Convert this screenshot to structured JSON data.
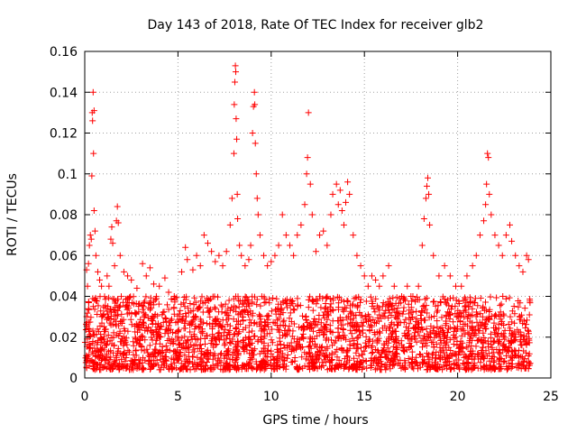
{
  "chart_data": {
    "type": "scatter",
    "title": "Day 143 of 2018, Rate Of TEC Index for receiver glb2",
    "xlabel": "GPS time / hours",
    "ylabel": "ROTI / TECUs",
    "xlim": [
      0,
      25
    ],
    "ylim": [
      0,
      0.16
    ],
    "xticks": [
      0,
      5,
      10,
      15,
      20,
      25
    ],
    "yticks": [
      0,
      0.02,
      0.04,
      0.06,
      0.08,
      0.1,
      0.12,
      0.14,
      0.16
    ],
    "xtick_labels": [
      "0",
      "5",
      "10",
      "15",
      "20",
      "25"
    ],
    "ytick_labels": [
      "0",
      "0.02",
      "0.04",
      "0.06",
      "0.08",
      "0.1",
      "0.12",
      "0.14",
      "0.16"
    ],
    "grid": true,
    "marker": "+",
    "color": "#ff0000",
    "series": [
      {
        "name": "ROTI",
        "points": [
          [
            0.1,
            0.053
          ],
          [
            0.15,
            0.045
          ],
          [
            0.2,
            0.056
          ],
          [
            0.25,
            0.065
          ],
          [
            0.3,
            0.07
          ],
          [
            0.35,
            0.068
          ],
          [
            0.4,
            0.13
          ],
          [
            0.42,
            0.126
          ],
          [
            0.45,
            0.14
          ],
          [
            0.5,
            0.131
          ],
          [
            0.47,
            0.11
          ],
          [
            0.38,
            0.099
          ],
          [
            0.5,
            0.082
          ],
          [
            0.55,
            0.072
          ],
          [
            0.6,
            0.06
          ],
          [
            0.7,
            0.052
          ],
          [
            0.8,
            0.048
          ],
          [
            0.9,
            0.045
          ],
          [
            1.2,
            0.05
          ],
          [
            1.3,
            0.045
          ],
          [
            1.4,
            0.068
          ],
          [
            1.45,
            0.074
          ],
          [
            1.5,
            0.066
          ],
          [
            1.6,
            0.055
          ],
          [
            1.7,
            0.077
          ],
          [
            1.75,
            0.084
          ],
          [
            1.8,
            0.076
          ],
          [
            1.9,
            0.06
          ],
          [
            2.1,
            0.052
          ],
          [
            2.3,
            0.05
          ],
          [
            2.5,
            0.048
          ],
          [
            2.8,
            0.044
          ],
          [
            3.1,
            0.056
          ],
          [
            3.3,
            0.05
          ],
          [
            3.5,
            0.054
          ],
          [
            3.7,
            0.046
          ],
          [
            4.0,
            0.045
          ],
          [
            4.3,
            0.049
          ],
          [
            4.5,
            0.042
          ],
          [
            4.8,
            0.04
          ],
          [
            5.2,
            0.052
          ],
          [
            5.4,
            0.064
          ],
          [
            5.5,
            0.058
          ],
          [
            5.8,
            0.053
          ],
          [
            6.0,
            0.06
          ],
          [
            6.2,
            0.055
          ],
          [
            6.4,
            0.07
          ],
          [
            6.6,
            0.066
          ],
          [
            6.8,
            0.062
          ],
          [
            7.0,
            0.057
          ],
          [
            7.2,
            0.06
          ],
          [
            7.4,
            0.055
          ],
          [
            7.6,
            0.062
          ],
          [
            7.8,
            0.075
          ],
          [
            7.9,
            0.088
          ],
          [
            8.0,
            0.11
          ],
          [
            8.02,
            0.134
          ],
          [
            8.05,
            0.145
          ],
          [
            8.08,
            0.153
          ],
          [
            8.1,
            0.15
          ],
          [
            8.12,
            0.127
          ],
          [
            8.15,
            0.117
          ],
          [
            8.18,
            0.09
          ],
          [
            8.2,
            0.078
          ],
          [
            8.3,
            0.065
          ],
          [
            8.4,
            0.06
          ],
          [
            8.6,
            0.055
          ],
          [
            8.8,
            0.058
          ],
          [
            8.9,
            0.065
          ],
          [
            9.0,
            0.12
          ],
          [
            9.05,
            0.133
          ],
          [
            9.1,
            0.14
          ],
          [
            9.12,
            0.134
          ],
          [
            9.15,
            0.115
          ],
          [
            9.2,
            0.1
          ],
          [
            9.25,
            0.088
          ],
          [
            9.3,
            0.08
          ],
          [
            9.4,
            0.07
          ],
          [
            9.6,
            0.06
          ],
          [
            9.8,
            0.055
          ],
          [
            10.0,
            0.057
          ],
          [
            10.2,
            0.06
          ],
          [
            10.4,
            0.065
          ],
          [
            10.6,
            0.08
          ],
          [
            10.8,
            0.07
          ],
          [
            11.0,
            0.065
          ],
          [
            11.2,
            0.06
          ],
          [
            11.4,
            0.07
          ],
          [
            11.6,
            0.075
          ],
          [
            11.8,
            0.085
          ],
          [
            11.9,
            0.1
          ],
          [
            11.95,
            0.108
          ],
          [
            12.0,
            0.13
          ],
          [
            12.1,
            0.095
          ],
          [
            12.2,
            0.08
          ],
          [
            12.4,
            0.062
          ],
          [
            12.6,
            0.07
          ],
          [
            12.8,
            0.072
          ],
          [
            13.0,
            0.065
          ],
          [
            13.2,
            0.08
          ],
          [
            13.3,
            0.09
          ],
          [
            13.5,
            0.095
          ],
          [
            13.6,
            0.085
          ],
          [
            13.7,
            0.092
          ],
          [
            13.8,
            0.082
          ],
          [
            13.9,
            0.075
          ],
          [
            14.0,
            0.086
          ],
          [
            14.1,
            0.096
          ],
          [
            14.2,
            0.09
          ],
          [
            14.4,
            0.07
          ],
          [
            14.6,
            0.06
          ],
          [
            14.8,
            0.055
          ],
          [
            15.0,
            0.05
          ],
          [
            15.2,
            0.045
          ],
          [
            15.4,
            0.05
          ],
          [
            15.6,
            0.048
          ],
          [
            15.8,
            0.045
          ],
          [
            16.0,
            0.05
          ],
          [
            16.3,
            0.055
          ],
          [
            16.6,
            0.045
          ],
          [
            17.0,
            0.04
          ],
          [
            17.3,
            0.045
          ],
          [
            17.6,
            0.04
          ],
          [
            17.9,
            0.045
          ],
          [
            18.1,
            0.065
          ],
          [
            18.2,
            0.078
          ],
          [
            18.3,
            0.088
          ],
          [
            18.35,
            0.094
          ],
          [
            18.4,
            0.098
          ],
          [
            18.45,
            0.09
          ],
          [
            18.5,
            0.075
          ],
          [
            18.7,
            0.06
          ],
          [
            19.0,
            0.05
          ],
          [
            19.3,
            0.055
          ],
          [
            19.6,
            0.05
          ],
          [
            19.9,
            0.045
          ],
          [
            20.2,
            0.045
          ],
          [
            20.5,
            0.05
          ],
          [
            20.8,
            0.055
          ],
          [
            21.0,
            0.06
          ],
          [
            21.2,
            0.07
          ],
          [
            21.4,
            0.077
          ],
          [
            21.5,
            0.085
          ],
          [
            21.55,
            0.095
          ],
          [
            21.6,
            0.11
          ],
          [
            21.65,
            0.108
          ],
          [
            21.7,
            0.09
          ],
          [
            21.8,
            0.08
          ],
          [
            22.0,
            0.07
          ],
          [
            22.2,
            0.065
          ],
          [
            22.4,
            0.06
          ],
          [
            22.6,
            0.07
          ],
          [
            22.8,
            0.075
          ],
          [
            22.9,
            0.067
          ],
          [
            23.1,
            0.06
          ],
          [
            23.3,
            0.055
          ],
          [
            23.5,
            0.052
          ],
          [
            23.7,
            0.06
          ],
          [
            23.8,
            0.058
          ]
        ]
      }
    ],
    "background_band": {
      "description": "dense ROTI scatter cluster filling 0.005 to 0.04 across the full 0 to 24 hour span",
      "x_range": [
        0,
        23.9
      ],
      "y_range": [
        0.004,
        0.04
      ],
      "density_points": 2600
    }
  }
}
